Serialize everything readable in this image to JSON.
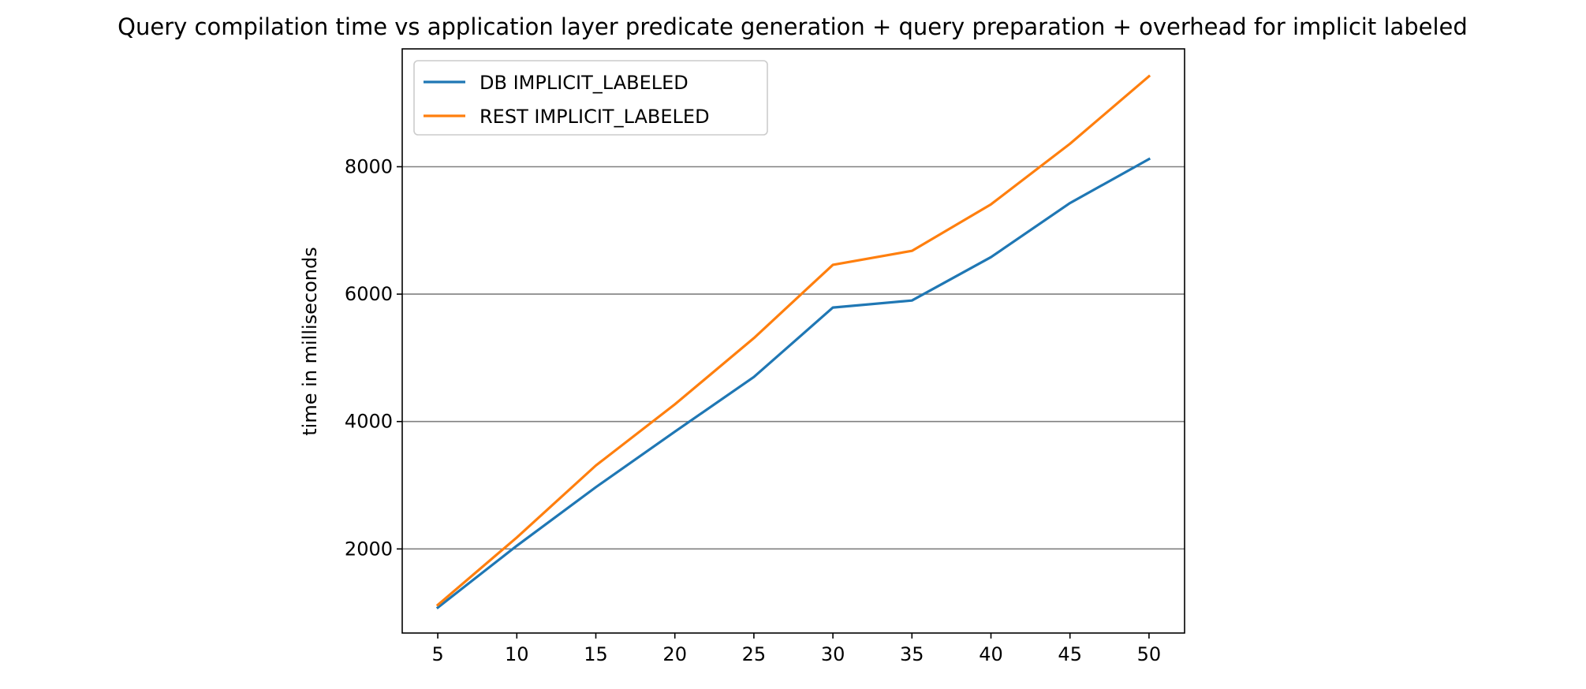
{
  "chart_data": {
    "type": "line",
    "title": "Query compilation time vs application layer predicate generation + query preparation + overhead for implicit labeled",
    "xlabel": "",
    "ylabel": "time in milliseconds",
    "x": [
      5,
      10,
      15,
      20,
      25,
      30,
      35,
      40,
      45,
      50
    ],
    "xticks": [
      "5",
      "10",
      "15",
      "20",
      "25",
      "30",
      "35",
      "40",
      "45",
      "50"
    ],
    "yticks": [
      "2000",
      "4000",
      "6000",
      "8000"
    ],
    "xlim": [
      2.75,
      52.25
    ],
    "ylim": [
      680,
      9850
    ],
    "grid": "horizontal",
    "legend_position": "upper-left",
    "series": [
      {
        "name": "DB IMPLICIT_LABELED",
        "color": "#1f77b4",
        "values": [
          1080,
          2050,
          2970,
          3840,
          4700,
          5790,
          5900,
          6580,
          7430,
          8120
        ]
      },
      {
        "name": "REST IMPLICIT_LABELED",
        "color": "#ff7f0e",
        "values": [
          1120,
          2180,
          3310,
          4270,
          5310,
          6460,
          6680,
          7410,
          8360,
          9420
        ]
      }
    ]
  }
}
